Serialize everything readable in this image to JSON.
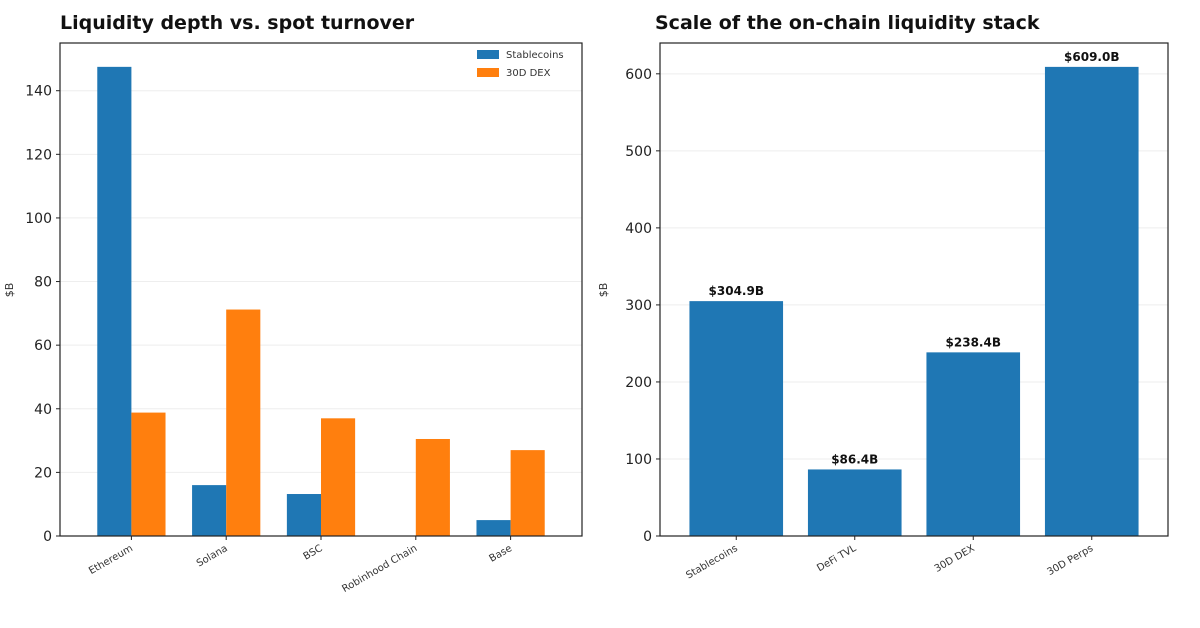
{
  "chart_data": [
    {
      "type": "bar",
      "title": "Liquidity depth vs. spot turnover",
      "xlabel": "",
      "ylabel": "$B",
      "ylim": [
        0,
        155
      ],
      "yticks": [
        0,
        20,
        40,
        60,
        80,
        100,
        120,
        140
      ],
      "categories": [
        "Ethereum",
        "Solana",
        "BSC",
        "Robinhood Chain",
        "Base"
      ],
      "series": [
        {
          "name": "Stablecoins",
          "color": "#1f77b4",
          "values": [
            147.5,
            16,
            13.2,
            0,
            5
          ]
        },
        {
          "name": "30D DEX",
          "color": "#ff7f0e",
          "values": [
            38.8,
            71.2,
            37,
            30.5,
            27
          ]
        }
      ],
      "legend": "top-right",
      "grid": true
    },
    {
      "type": "bar",
      "title": "Scale of the on-chain liquidity stack",
      "xlabel": "",
      "ylabel": "$B",
      "ylim": [
        0,
        640
      ],
      "yticks": [
        0,
        100,
        200,
        300,
        400,
        500,
        600
      ],
      "categories": [
        "Stablecoins",
        "DeFi TVL",
        "30D DEX",
        "30D Perps"
      ],
      "series": [
        {
          "name": "",
          "color": "#1f77b4",
          "values": [
            304.9,
            86.4,
            238.4,
            609.0
          ]
        }
      ],
      "data_labels": [
        "$304.9B",
        "$86.4B",
        "$238.4B",
        "$609.0B"
      ],
      "grid": true
    }
  ]
}
